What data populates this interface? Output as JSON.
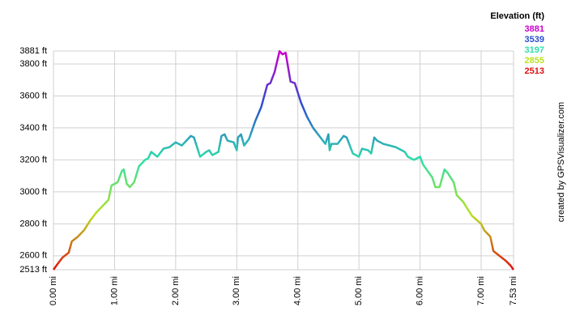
{
  "chart_data": {
    "type": "line",
    "y_axis_label": "Elevation (ft)",
    "credit": "created by GPSVisualizer.com",
    "legend": {
      "values": [
        3881,
        3539,
        3197,
        2855,
        2513
      ],
      "colors": [
        "#cc00cc",
        "#2a4fd0",
        "#2ee0a8",
        "#b8e020",
        "#e01010"
      ]
    },
    "grid": true,
    "xlim": [
      0,
      7.53
    ],
    "ylim": [
      2513,
      3881
    ],
    "xticks": [
      {
        "value": 0,
        "label": "0.00 mi"
      },
      {
        "value": 1,
        "label": "1.00 mi"
      },
      {
        "value": 2,
        "label": "2.00 mi"
      },
      {
        "value": 3,
        "label": "3.00 mi"
      },
      {
        "value": 4,
        "label": "4.00 mi"
      },
      {
        "value": 5,
        "label": "5.00 mi"
      },
      {
        "value": 6,
        "label": "6.00 mi"
      },
      {
        "value": 7,
        "label": "7.00 mi"
      },
      {
        "value": 7.53,
        "label": "7.53 mi"
      }
    ],
    "yticks": [
      {
        "value": 2513,
        "label": "2513 ft"
      },
      {
        "value": 2600,
        "label": "2600 ft"
      },
      {
        "value": 2800,
        "label": "2800 ft"
      },
      {
        "value": 3000,
        "label": "3000 ft"
      },
      {
        "value": 3200,
        "label": "3200 ft"
      },
      {
        "value": 3400,
        "label": "3400 ft"
      },
      {
        "value": 3600,
        "label": "3600 ft"
      },
      {
        "value": 3800,
        "label": "3800 ft"
      },
      {
        "value": 3881,
        "label": "3881 ft"
      }
    ],
    "x": [
      0.0,
      0.05,
      0.15,
      0.25,
      0.3,
      0.4,
      0.5,
      0.6,
      0.7,
      0.8,
      0.9,
      0.95,
      1.05,
      1.12,
      1.15,
      1.2,
      1.25,
      1.32,
      1.4,
      1.5,
      1.55,
      1.6,
      1.7,
      1.8,
      1.9,
      2.0,
      2.1,
      2.2,
      2.25,
      2.3,
      2.35,
      2.4,
      2.5,
      2.55,
      2.6,
      2.7,
      2.75,
      2.8,
      2.85,
      2.95,
      3.0,
      3.02,
      3.07,
      3.12,
      3.2,
      3.3,
      3.4,
      3.5,
      3.55,
      3.62,
      3.7,
      3.75,
      3.8,
      3.88,
      3.95,
      4.05,
      4.15,
      4.25,
      4.35,
      4.45,
      4.5,
      4.52,
      4.55,
      4.65,
      4.75,
      4.8,
      4.9,
      4.95,
      5.0,
      5.05,
      5.15,
      5.2,
      5.25,
      5.3,
      5.4,
      5.5,
      5.6,
      5.75,
      5.8,
      5.9,
      6.0,
      6.05,
      6.2,
      6.25,
      6.32,
      6.4,
      6.45,
      6.55,
      6.6,
      6.7,
      6.85,
      7.0,
      7.05,
      7.15,
      7.2,
      7.3,
      7.4,
      7.48,
      7.53
    ],
    "series": [
      {
        "name": "Elevation",
        "values": [
          2513,
          2540,
          2590,
          2620,
          2690,
          2720,
          2760,
          2820,
          2870,
          2910,
          2950,
          3040,
          3060,
          3130,
          3140,
          3050,
          3030,
          3060,
          3160,
          3200,
          3210,
          3250,
          3220,
          3270,
          3280,
          3310,
          3290,
          3330,
          3350,
          3340,
          3280,
          3220,
          3250,
          3260,
          3230,
          3250,
          3350,
          3360,
          3320,
          3310,
          3260,
          3340,
          3360,
          3290,
          3330,
          3440,
          3530,
          3670,
          3680,
          3750,
          3880,
          3860,
          3870,
          3690,
          3680,
          3560,
          3470,
          3400,
          3350,
          3300,
          3360,
          3260,
          3300,
          3300,
          3350,
          3340,
          3240,
          3230,
          3220,
          3270,
          3260,
          3240,
          3340,
          3320,
          3300,
          3290,
          3280,
          3250,
          3220,
          3200,
          3220,
          3170,
          3090,
          3030,
          3030,
          3140,
          3120,
          3060,
          2980,
          2940,
          2850,
          2800,
          2760,
          2720,
          2630,
          2600,
          2570,
          2540,
          2513
        ]
      }
    ]
  }
}
